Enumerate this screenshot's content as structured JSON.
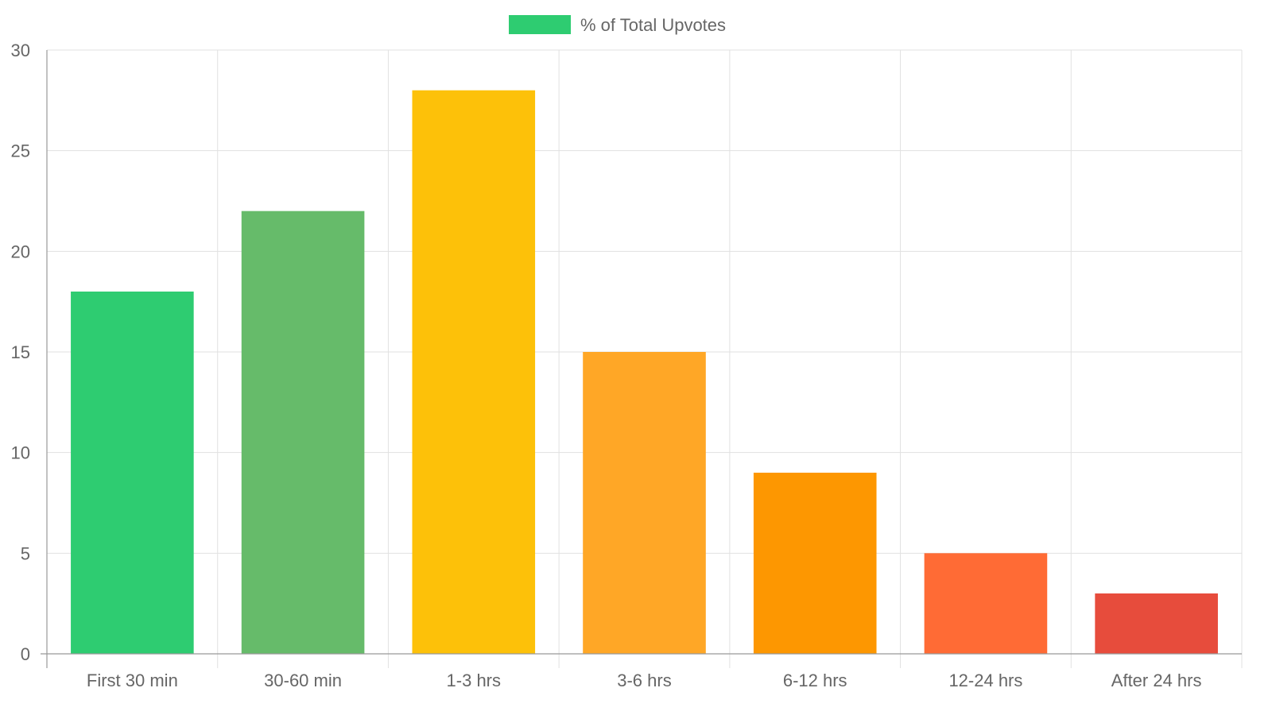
{
  "chart_data": {
    "type": "bar",
    "categories": [
      "First 30 min",
      "30-60 min",
      "1-3 hrs",
      "3-6 hrs",
      "6-12 hrs",
      "12-24 hrs",
      "After 24 hrs"
    ],
    "series": [
      {
        "name": "% of Total Upvotes",
        "values": [
          18,
          22,
          28,
          15,
          9,
          5,
          3
        ],
        "colors": [
          "#2ecc71",
          "#66bb6a",
          "#fdc109",
          "#ffa726",
          "#fd9701",
          "#ff6b35",
          "#e74c3c"
        ]
      }
    ],
    "legend_color": "#2ecc71",
    "legend_position": "top-center",
    "ylim": [
      0,
      30
    ],
    "yticks": [
      "0",
      "5",
      "10",
      "15",
      "20",
      "25",
      "30"
    ],
    "grid": true,
    "title": "",
    "xlabel": "",
    "ylabel": ""
  }
}
